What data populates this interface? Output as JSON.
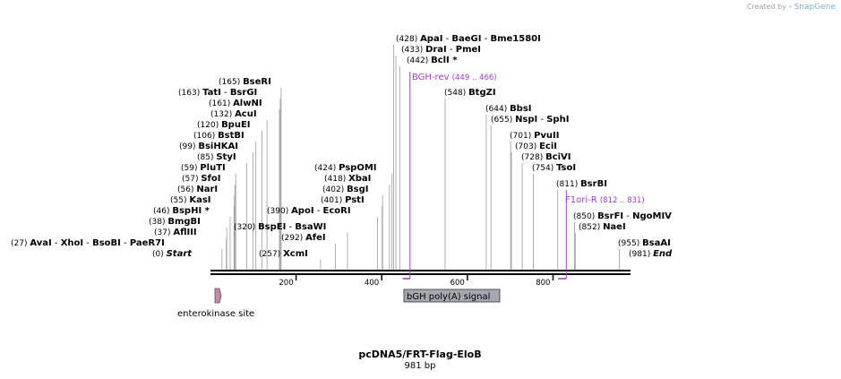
{
  "header": {
    "created_by": "Created by",
    "brand": "SnapGene"
  },
  "map": {
    "title": "pcDNA5/FRT-Flag-EloB",
    "length_label": "981 bp",
    "axis": {
      "start": 0,
      "end": 981,
      "ticks": [
        "200",
        "400",
        "600",
        "800"
      ],
      "tick_values": [
        200,
        400,
        600,
        800
      ]
    },
    "colors": {
      "backbone": "#000000",
      "primer": "#a03cc8",
      "feature_gray": "#a5a8b0",
      "feature_pink": "#c48aa6"
    },
    "sites": [
      {
        "names": [
          "AvaI",
          "XhoI",
          "BsoBI",
          "PaeR7I"
        ],
        "pos": "(27)",
        "site": 27
      },
      {
        "names": [
          "Start"
        ],
        "pos": "(0)",
        "site": 0,
        "italic": true
      },
      {
        "names": [
          "BmgBI"
        ],
        "pos": "(38)",
        "site": 38
      },
      {
        "names": [
          "AflIII"
        ],
        "pos": "(37)",
        "site": 37
      },
      {
        "names": [
          "BspHI *"
        ],
        "pos": "(46)",
        "site": 46
      },
      {
        "names": [
          "KasI"
        ],
        "pos": "(55)",
        "site": 55
      },
      {
        "names": [
          "NarI"
        ],
        "pos": "(56)",
        "site": 56
      },
      {
        "names": [
          "SfoI"
        ],
        "pos": "(57)",
        "site": 57
      },
      {
        "names": [
          "PluTI"
        ],
        "pos": "(59)",
        "site": 59
      },
      {
        "names": [
          "StyI"
        ],
        "pos": "(85)",
        "site": 85
      },
      {
        "names": [
          "BsiHKAI"
        ],
        "pos": "(99)",
        "site": 99
      },
      {
        "names": [
          "BstBI"
        ],
        "pos": "(106)",
        "site": 106
      },
      {
        "names": [
          "BpuEI"
        ],
        "pos": "(120)",
        "site": 120
      },
      {
        "names": [
          "AcuI"
        ],
        "pos": "(132)",
        "site": 132
      },
      {
        "names": [
          "AlwNI"
        ],
        "pos": "(161)",
        "site": 161
      },
      {
        "names": [
          "TatI",
          "BsrGI"
        ],
        "pos": "(163)",
        "site": 163
      },
      {
        "names": [
          "BseRI"
        ],
        "pos": "(165)",
        "site": 165
      },
      {
        "names": [
          "XcmI"
        ],
        "pos": "(257)",
        "site": 257
      },
      {
        "names": [
          "AfeI"
        ],
        "pos": "(292)",
        "site": 292
      },
      {
        "names": [
          "BspEI",
          "BsaWI"
        ],
        "pos": "(320)",
        "site": 320
      },
      {
        "names": [
          "ApoI",
          "EcoRI"
        ],
        "pos": "(390)",
        "site": 390
      },
      {
        "names": [
          "PstI"
        ],
        "pos": "(401)",
        "site": 401
      },
      {
        "names": [
          "BsgI"
        ],
        "pos": "(402)",
        "site": 402
      },
      {
        "names": [
          "XbaI"
        ],
        "pos": "(418)",
        "site": 418
      },
      {
        "names": [
          "PspOMI"
        ],
        "pos": "(424)",
        "site": 424
      },
      {
        "names": [
          "ApaI",
          "BaeGI",
          "Bme1580I"
        ],
        "pos": "(428)",
        "site": 428
      },
      {
        "names": [
          "DraI",
          "PmeI"
        ],
        "pos": "(433)",
        "site": 433
      },
      {
        "names": [
          "BclI *"
        ],
        "pos": "(442)",
        "site": 442
      },
      {
        "names": [
          "BtgZI"
        ],
        "pos": "(548)",
        "site": 548
      },
      {
        "names": [
          "BbsI"
        ],
        "pos": "(644)",
        "site": 644
      },
      {
        "names": [
          "NspI",
          "SphI"
        ],
        "pos": "(655)",
        "site": 655
      },
      {
        "names": [
          "PvuII"
        ],
        "pos": "(701)",
        "site": 701
      },
      {
        "names": [
          "EciI"
        ],
        "pos": "(703)",
        "site": 703
      },
      {
        "names": [
          "BciVI"
        ],
        "pos": "(728)",
        "site": 728
      },
      {
        "names": [
          "TsoI"
        ],
        "pos": "(754)",
        "site": 754
      },
      {
        "names": [
          "BsrBI"
        ],
        "pos": "(811)",
        "site": 811
      },
      {
        "names": [
          "BsrFI",
          "NgoMIV"
        ],
        "pos": "(850)",
        "site": 850
      },
      {
        "names": [
          "NaeI"
        ],
        "pos": "(852)",
        "site": 852
      },
      {
        "names": [
          "BsaAI"
        ],
        "pos": "(955)",
        "site": 955
      },
      {
        "names": [
          "End"
        ],
        "pos": "(981)",
        "site": 981,
        "italic": true
      }
    ],
    "primers": [
      {
        "name": "BGH-rev",
        "range": "(449 .. 466)",
        "start": 449,
        "end": 466
      },
      {
        "name": "F1ori-R",
        "range": "(812 .. 831)",
        "start": 812,
        "end": 831
      }
    ],
    "features": [
      {
        "name": "bGH poly(A) signal",
        "start": 449,
        "end": 673,
        "color": "#a5a8b0",
        "label_inside": true
      },
      {
        "name": "enterokinase site",
        "start": 2,
        "end": 16,
        "color": "#c48aa6",
        "label_inside": false
      }
    ]
  }
}
